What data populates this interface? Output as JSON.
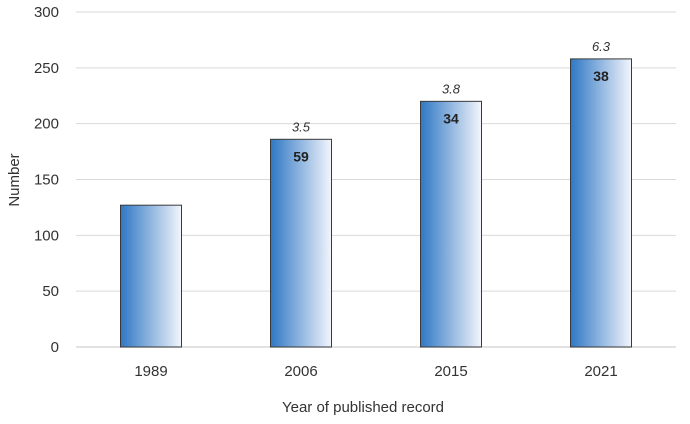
{
  "chart_data": {
    "type": "bar",
    "title": "",
    "xlabel": "Year of published record",
    "ylabel": "Number",
    "categories": [
      "1989",
      "2006",
      "2015",
      "2021"
    ],
    "values": [
      127,
      186,
      220,
      258
    ],
    "bar_labels": [
      "",
      "59",
      "34",
      "38"
    ],
    "bar_annotations": [
      "",
      "3.5",
      "3.8",
      "6.3"
    ],
    "ylim": [
      0,
      300
    ],
    "yticks": [
      0,
      50,
      100,
      150,
      200,
      250,
      300
    ],
    "ytick_labels": [
      "0",
      "50",
      "100",
      "150",
      "200",
      "250",
      "300"
    ],
    "grid": true,
    "legend": "none",
    "colors": {
      "bar_gradient_start": "#2f78c4",
      "bar_gradient_end": "#f3f5fc",
      "bar_stroke": "#3a3a3a",
      "grid": "#d9d9d9"
    }
  }
}
